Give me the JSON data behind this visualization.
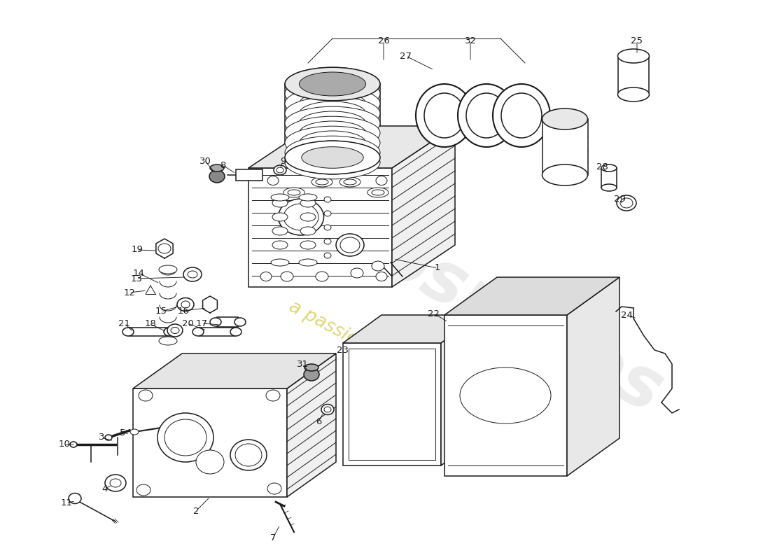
{
  "bg_color": "#ffffff",
  "line_color": "#1a1a1a",
  "watermark_gray": "#c0c0c0",
  "watermark_yellow": "#c8b400",
  "figsize": [
    11.0,
    8.0
  ],
  "dpi": 100
}
